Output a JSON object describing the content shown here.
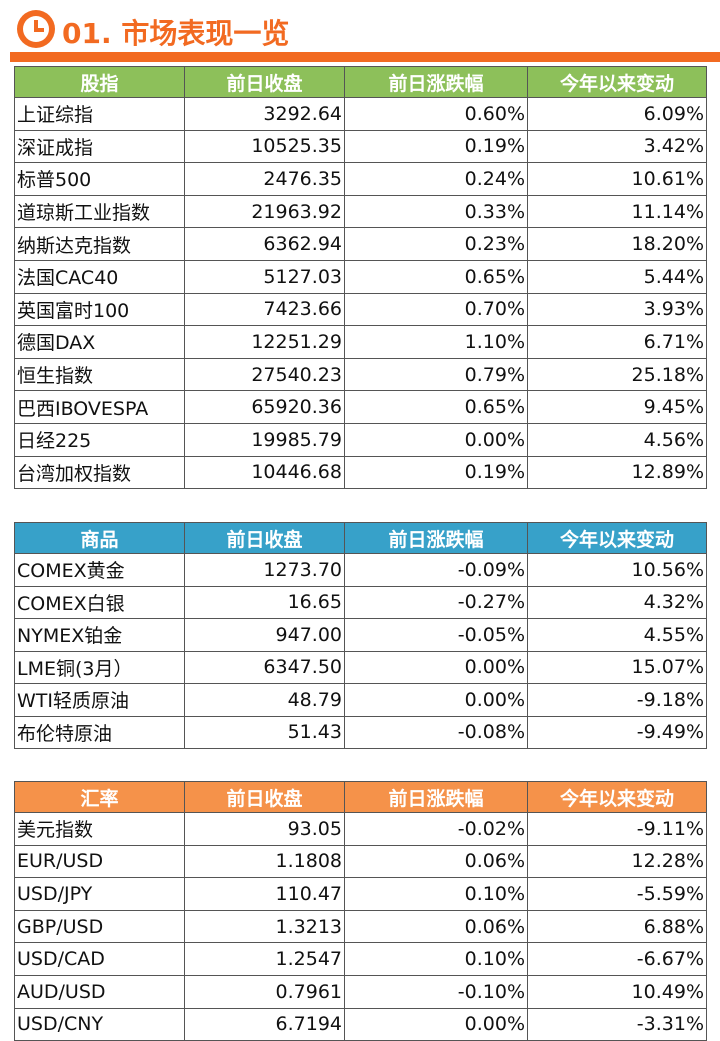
{
  "header": {
    "title": "01. 市场表现一览"
  },
  "tables": [
    {
      "header": [
        "股指",
        "前日收盘",
        "前日涨跌幅",
        "今年以来变动"
      ],
      "rows": [
        [
          "上证综指",
          "3292.64",
          "0.60%",
          "6.09%"
        ],
        [
          "深证成指",
          "10525.35",
          "0.19%",
          "3.42%"
        ],
        [
          "标普500",
          "2476.35",
          "0.24%",
          "10.61%"
        ],
        [
          "道琼斯工业指数",
          "21963.92",
          "0.33%",
          "11.14%"
        ],
        [
          "纳斯达克指数",
          "6362.94",
          "0.23%",
          "18.20%"
        ],
        [
          "法国CAC40",
          "5127.03",
          "0.65%",
          "5.44%"
        ],
        [
          "英国富时100",
          "7423.66",
          "0.70%",
          "3.93%"
        ],
        [
          "德国DAX",
          "12251.29",
          "1.10%",
          "6.71%"
        ],
        [
          "恒生指数",
          "27540.23",
          "0.79%",
          "25.18%"
        ],
        [
          "巴西IBOVESPA",
          "65920.36",
          "0.65%",
          "9.45%"
        ],
        [
          "日经225",
          "19985.79",
          "0.00%",
          "4.56%"
        ],
        [
          "台湾加权指数",
          "10446.68",
          "0.19%",
          "12.89%"
        ]
      ]
    },
    {
      "header": [
        "商品",
        "前日收盘",
        "前日涨跌幅",
        "今年以来变动"
      ],
      "rows": [
        [
          "COMEX黄金",
          "1273.70",
          "-0.09%",
          "10.56%"
        ],
        [
          "COMEX白银",
          "16.65",
          "-0.27%",
          "4.32%"
        ],
        [
          "NYMEX铂金",
          "947.00",
          "-0.05%",
          "4.55%"
        ],
        [
          "LME铜(3月）",
          "6347.50",
          "0.00%",
          "15.07%"
        ],
        [
          "WTI轻质原油",
          "48.79",
          "0.00%",
          "-9.18%"
        ],
        [
          "布伦特原油",
          "51.43",
          "-0.08%",
          "-9.49%"
        ]
      ]
    },
    {
      "header": [
        "汇率",
        "前日收盘",
        "前日涨跌幅",
        "今年以来变动"
      ],
      "rows": [
        [
          "美元指数",
          "93.05",
          "-0.02%",
          "-9.11%"
        ],
        [
          "EUR/USD",
          "1.1808",
          "0.06%",
          "12.28%"
        ],
        [
          "USD/JPY",
          "110.47",
          "0.10%",
          "-5.59%"
        ],
        [
          "GBP/USD",
          "1.3213",
          "0.06%",
          "6.88%"
        ],
        [
          "USD/CAD",
          "1.2547",
          "0.10%",
          "-6.67%"
        ],
        [
          "AUD/USD",
          "0.7961",
          "-0.10%",
          "10.49%"
        ],
        [
          "USD/CNY",
          "6.7194",
          "0.00%",
          "-3.31%"
        ]
      ]
    }
  ]
}
